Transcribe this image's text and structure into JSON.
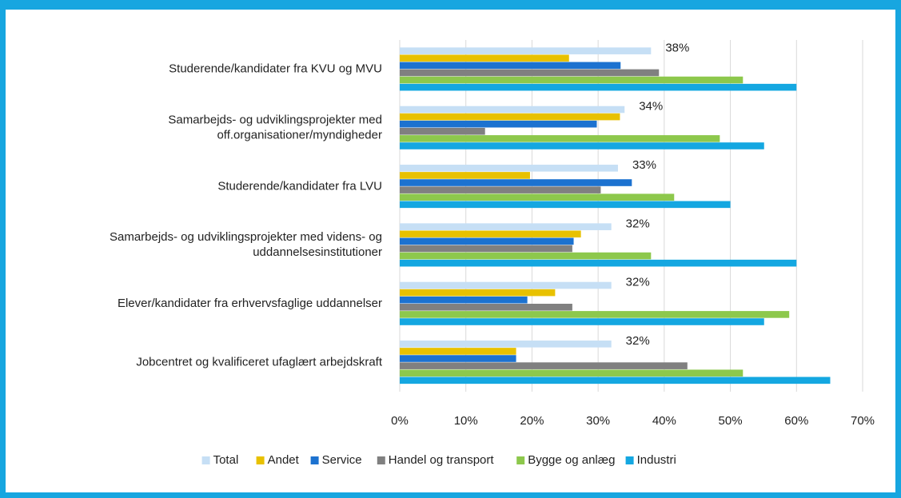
{
  "chart_data": {
    "type": "barh",
    "categories": [
      "Studerende/kandidater fra KVU og MVU",
      "Samarbejds- og udviklingsprojekter med\noff.organisationer/myndigheder",
      "Studerende/kandidater fra LVU",
      "Samarbejds- og udviklingsprojekter med videns- og\nuddannelsesinstitutioner",
      "Elever/kandidater fra erhvervsfaglige uddannelser",
      "Jobcentret og kvalificeret ufaglært arbejdskraft"
    ],
    "series": [
      {
        "name": "Total",
        "color": "#c6dff5",
        "values": [
          38,
          34,
          33,
          32,
          32,
          32
        ],
        "value_labels": [
          "38%",
          "34%",
          "33%",
          "32%",
          "32%",
          "32%"
        ]
      },
      {
        "name": "Andet",
        "color": "#e8c100",
        "values": [
          25.6,
          33.3,
          19.7,
          27.4,
          23.5,
          17.6
        ]
      },
      {
        "name": "Service",
        "color": "#1c72d0",
        "values": [
          33.4,
          29.8,
          35.1,
          26.3,
          19.3,
          17.6
        ]
      },
      {
        "name": "Handel og transport",
        "color": "#808080",
        "values": [
          39.2,
          12.9,
          30.4,
          26.1,
          26.1,
          43.5
        ]
      },
      {
        "name": "Bygge og anlæg",
        "color": "#8dc84c",
        "values": [
          51.9,
          48.4,
          41.5,
          38,
          58.9,
          51.9
        ]
      },
      {
        "name": "Industri",
        "color": "#14a7e1",
        "values": [
          60,
          55.1,
          50,
          60,
          55.1,
          65.1
        ]
      }
    ],
    "xlim": [
      0,
      70
    ],
    "xticks": [
      {
        "value": 0,
        "label": "0%"
      },
      {
        "value": 10,
        "label": "10%"
      },
      {
        "value": 20,
        "label": "20%"
      },
      {
        "value": 30,
        "label": "30%"
      },
      {
        "value": 40,
        "label": "40%"
      },
      {
        "value": 50,
        "label": "50%"
      },
      {
        "value": 60,
        "label": "60%"
      },
      {
        "value": 70,
        "label": "70%"
      }
    ],
    "grid": true,
    "legend": "bottom"
  }
}
